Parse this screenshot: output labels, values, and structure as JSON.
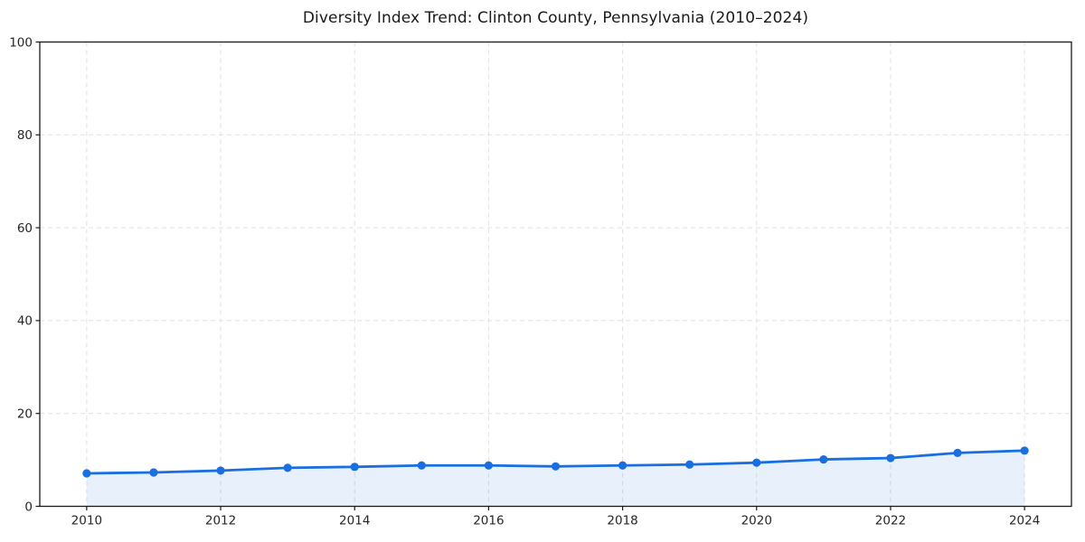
{
  "figure": {
    "title": "Diversity Index Trend: Clinton County, Pennsylvania (2010–2024)"
  },
  "chart_data": {
    "type": "line",
    "title": "Diversity Index Trend: Clinton County, Pennsylvania (2010–2024)",
    "xlabel": "",
    "ylabel": "",
    "x": [
      2010,
      2011,
      2012,
      2013,
      2014,
      2015,
      2016,
      2017,
      2018,
      2019,
      2020,
      2021,
      2022,
      2023,
      2024
    ],
    "series": [
      {
        "name": "Diversity Index",
        "values": [
          7.1,
          7.3,
          7.7,
          8.3,
          8.5,
          8.8,
          8.8,
          8.6,
          8.8,
          9.0,
          9.4,
          10.1,
          10.4,
          11.5,
          12.0
        ]
      }
    ],
    "xlim": [
      2009.3,
      2024.7
    ],
    "ylim": [
      0,
      100
    ],
    "xticks": [
      2010,
      2012,
      2014,
      2016,
      2018,
      2020,
      2022,
      2024
    ],
    "yticks": [
      0,
      20,
      40,
      60,
      80,
      100
    ],
    "grid": true,
    "grid_style": "dashed",
    "legend": false,
    "marker": "circle",
    "area_fill": true,
    "colors": {
      "line": "#1a6fe0",
      "marker": "#1a6fe0",
      "fill": "#1a6fe0",
      "grid": "#e1e1e1",
      "axis": "#1a1a1a",
      "text": "#262626",
      "background": "#ffffff"
    },
    "fill_opacity": 0.1
  }
}
